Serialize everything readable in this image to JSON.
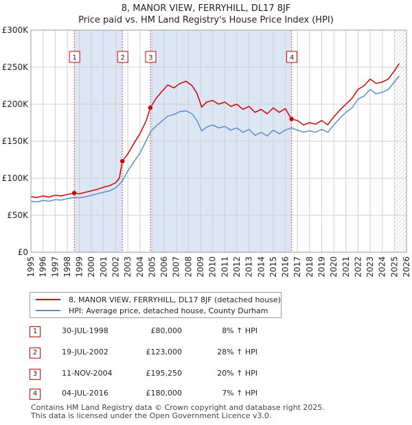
{
  "title_line1": "8, MANOR VIEW, FERRYHILL, DL17 8JF",
  "title_line2": "Price paid vs. HM Land Registry's House Price Index (HPI)",
  "legend": {
    "property": "8, MANOR VIEW, FERRYHILL, DL17 8JF (detached house)",
    "hpi": "HPI: Average price, detached house, County Durham"
  },
  "colors": {
    "property": "#cc0000",
    "hpi": "#5b8ec7",
    "shade": "#dde6f5",
    "grid": "#d0d0d0"
  },
  "transactions": [
    {
      "num": "1",
      "date": "30-JUL-1998",
      "price": "£80,000",
      "hpi": "8% ↑ HPI"
    },
    {
      "num": "2",
      "date": "19-JUL-2002",
      "price": "£123,000",
      "hpi": "28% ↑ HPI"
    },
    {
      "num": "3",
      "date": "11-NOV-2004",
      "price": "£195,250",
      "hpi": "20% ↑ HPI"
    },
    {
      "num": "4",
      "date": "04-JUL-2016",
      "price": "£180,000",
      "hpi": "7% ↑ HPI"
    }
  ],
  "footer_line1": "Contains HM Land Registry data © Crown copyright and database right 2025.",
  "footer_line2": "This data is licensed under the Open Government Licence v3.0.",
  "chart_data": {
    "type": "line",
    "title": "8, MANOR VIEW, FERRYHILL, DL17 8JF — Price paid vs. HM Land Registry's House Price Index (HPI)",
    "xlim": [
      1995,
      2026
    ],
    "ylim": [
      0,
      300000
    ],
    "yticks": [
      0,
      50000,
      100000,
      150000,
      200000,
      250000,
      300000
    ],
    "ytick_labels": [
      "£0",
      "£50K",
      "£100K",
      "£150K",
      "£200K",
      "£250K",
      "£300K"
    ],
    "xticks": [
      1995,
      1996,
      1997,
      1998,
      1999,
      2000,
      2001,
      2002,
      2003,
      2004,
      2005,
      2006,
      2007,
      2008,
      2009,
      2010,
      2011,
      2012,
      2013,
      2014,
      2015,
      2016,
      2017,
      2018,
      2019,
      2020,
      2021,
      2022,
      2023,
      2024,
      2025,
      2026
    ],
    "shaded_periods": [
      [
        1998.58,
        2002.55
      ],
      [
        2004.86,
        2016.51
      ]
    ],
    "forecast_start": 2025.0,
    "sales": [
      {
        "label": "1",
        "x": 1998.58,
        "y": 80000
      },
      {
        "label": "2",
        "x": 2002.55,
        "y": 123000
      },
      {
        "label": "3",
        "x": 2004.86,
        "y": 195250
      },
      {
        "label": "4",
        "x": 2016.51,
        "y": 180000
      }
    ],
    "series": [
      {
        "name": "8, MANOR VIEW, FERRYHILL, DL17 8JF (detached house)",
        "x": [
          1995,
          1995.5,
          1996,
          1996.5,
          1997,
          1997.5,
          1998,
          1998.58,
          1999,
          1999.5,
          2000,
          2000.5,
          2001,
          2001.5,
          2002,
          2002.3,
          2002.55,
          2003,
          2003.5,
          2004,
          2004.5,
          2004.86,
          2005.3,
          2005.8,
          2006.3,
          2006.8,
          2007.3,
          2007.8,
          2008.3,
          2008.7,
          2009.1,
          2009.5,
          2010,
          2010.5,
          2011,
          2011.5,
          2012,
          2012.5,
          2013,
          2013.5,
          2014,
          2014.5,
          2015,
          2015.5,
          2016,
          2016.51,
          2017,
          2017.5,
          2018,
          2018.5,
          2019,
          2019.5,
          2020,
          2020.5,
          2021,
          2021.5,
          2022,
          2022.5,
          2023,
          2023.5,
          2024,
          2024.5,
          2025,
          2025.4
        ],
        "values": [
          75000,
          74000,
          76000,
          74500,
          77000,
          76000,
          78000,
          80000,
          79000,
          81000,
          83000,
          85000,
          88000,
          90000,
          94000,
          100000,
          123000,
          133000,
          147000,
          160000,
          177000,
          195250,
          207000,
          217000,
          226000,
          222000,
          228000,
          231000,
          225000,
          215000,
          196000,
          203000,
          205000,
          200000,
          203000,
          197000,
          200000,
          193000,
          197000,
          189000,
          193000,
          187000,
          195000,
          189000,
          194000,
          180000,
          178000,
          172000,
          175000,
          173000,
          178000,
          172000,
          183000,
          192000,
          200000,
          208000,
          220000,
          225000,
          234000,
          228000,
          230000,
          234000,
          245000,
          255000
        ]
      },
      {
        "name": "HPI: Average price, detached house, County Durham",
        "x": [
          1995,
          1995.5,
          1996,
          1996.5,
          1997,
          1997.5,
          1998,
          1998.58,
          1999,
          1999.5,
          2000,
          2000.5,
          2001,
          2001.5,
          2002,
          2002.55,
          2003,
          2003.5,
          2004,
          2004.5,
          2004.86,
          2005.3,
          2005.8,
          2006.3,
          2006.8,
          2007.3,
          2007.8,
          2008.3,
          2008.7,
          2009.1,
          2009.5,
          2010,
          2010.5,
          2011,
          2011.5,
          2012,
          2012.5,
          2013,
          2013.5,
          2014,
          2014.5,
          2015,
          2015.5,
          2016,
          2016.51,
          2017,
          2017.5,
          2018,
          2018.5,
          2019,
          2019.5,
          2020,
          2020.5,
          2021,
          2021.5,
          2022,
          2022.5,
          2023,
          2023.5,
          2024,
          2024.5,
          2025,
          2025.4
        ],
        "values": [
          69000,
          68000,
          70000,
          69000,
          71000,
          70500,
          72500,
          74000,
          73500,
          75000,
          77000,
          79000,
          81000,
          83000,
          87000,
          96000,
          110000,
          122000,
          134000,
          150000,
          162500,
          170000,
          177000,
          184000,
          186000,
          190000,
          191000,
          187000,
          178000,
          164000,
          169000,
          172000,
          168000,
          170000,
          165000,
          168000,
          162000,
          166000,
          158000,
          162000,
          157000,
          165000,
          160000,
          165000,
          168000,
          165000,
          162000,
          164000,
          162000,
          166000,
          162000,
          172000,
          181000,
          189000,
          195000,
          207000,
          211000,
          220000,
          214000,
          216000,
          220000,
          230000,
          238000
        ]
      }
    ]
  }
}
